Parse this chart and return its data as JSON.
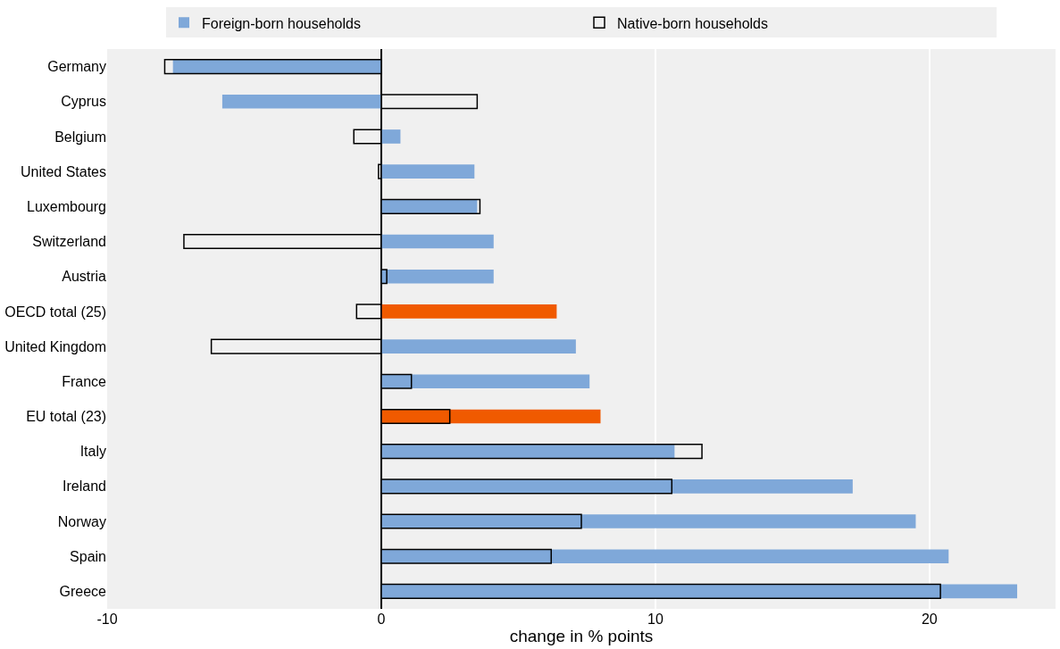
{
  "chart_data": {
    "type": "bar",
    "orientation": "horizontal",
    "xlabel": "change in % points",
    "categories": [
      "Germany",
      "Cyprus",
      "Belgium",
      "United States",
      "Luxembourg",
      "Switzerland",
      "Austria",
      "OECD total (25)",
      "United Kingdom",
      "France",
      "EU total (23)",
      "Italy",
      "Ireland",
      "Norway",
      "Spain",
      "Greece"
    ],
    "series": [
      {
        "name": "Foreign-born households",
        "color": "#7fa8d9",
        "colors": [
          "#7fa8d9",
          "#7fa8d9",
          "#7fa8d9",
          "#7fa8d9",
          "#7fa8d9",
          "#7fa8d9",
          "#7fa8d9",
          "#f05a00",
          "#7fa8d9",
          "#7fa8d9",
          "#f05a00",
          "#7fa8d9",
          "#7fa8d9",
          "#7fa8d9",
          "#7fa8d9",
          "#7fa8d9"
        ],
        "values": [
          -7.6,
          -5.8,
          0.7,
          3.4,
          3.5,
          4.1,
          4.1,
          6.4,
          7.1,
          7.6,
          8.0,
          10.7,
          17.2,
          19.5,
          20.7,
          23.2
        ]
      },
      {
        "name": "Native-born households",
        "color": "#000000",
        "values": [
          -7.9,
          3.5,
          -1.0,
          -0.1,
          3.6,
          -7.2,
          0.2,
          -0.9,
          -6.2,
          1.1,
          2.5,
          11.7,
          10.6,
          7.3,
          6.2,
          20.4
        ]
      }
    ],
    "xlim": [
      -10,
      24.6
    ],
    "xticks": [
      -10,
      0,
      10,
      20
    ],
    "grid": "x",
    "legend": "top"
  }
}
